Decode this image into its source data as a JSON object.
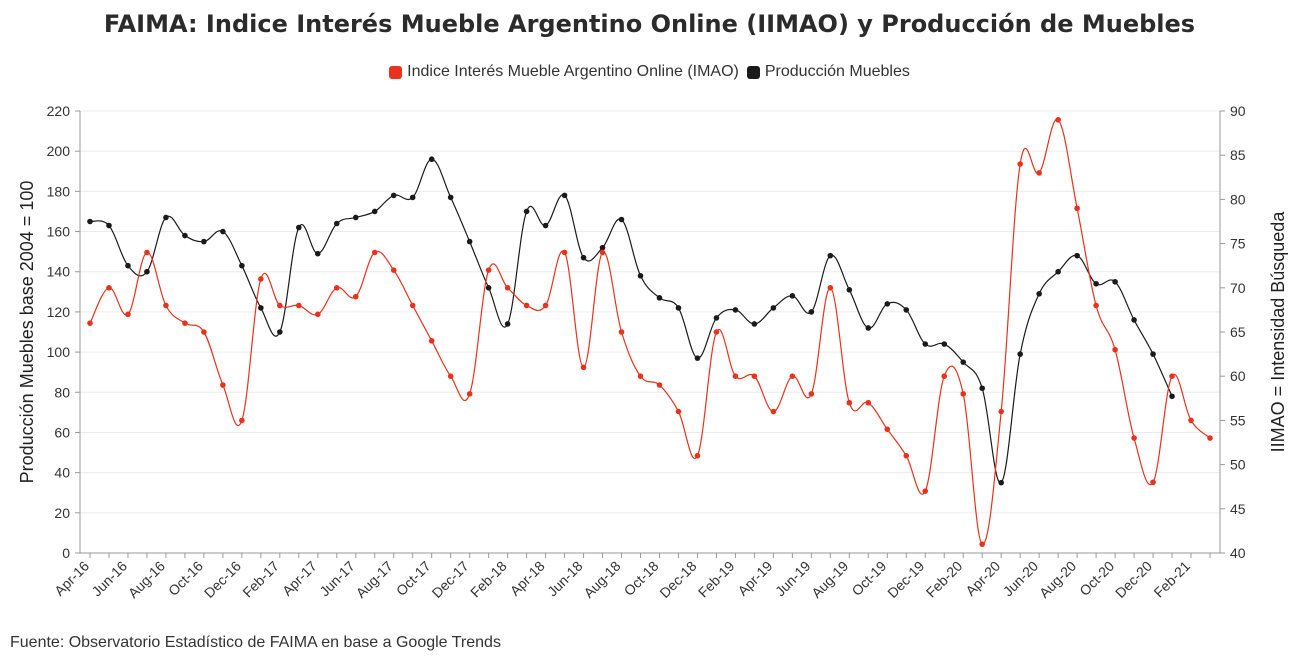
{
  "chart_data": {
    "type": "line",
    "title": "FAIMA: Indice Interés Mueble Argentino Online (IIMAO) y Producción de Muebles",
    "source": "Fuente: Observatorio Estadístico de FAIMA en base a Google Trends",
    "y_left": {
      "label": "Producción Muebles base 2004 = 100",
      "lim": [
        0,
        220
      ],
      "ticks": [
        "0",
        "20",
        "40",
        "60",
        "80",
        "100",
        "120",
        "140",
        "160",
        "180",
        "200",
        "220"
      ]
    },
    "y_right": {
      "label": "IIMAO = Intensidad Búsqueda",
      "lim": [
        40,
        90
      ],
      "ticks": [
        "40",
        "45",
        "50",
        "55",
        "60",
        "65",
        "70",
        "75",
        "80",
        "85",
        "90"
      ]
    },
    "x": [
      "Apr-16",
      "May-16",
      "Jun-16",
      "Jul-16",
      "Aug-16",
      "Sep-16",
      "Oct-16",
      "Nov-16",
      "Dec-16",
      "Jan-17",
      "Feb-17",
      "Mar-17",
      "Apr-17",
      "May-17",
      "Jun-17",
      "Jul-17",
      "Aug-17",
      "Sep-17",
      "Oct-17",
      "Nov-17",
      "Dec-17",
      "Jan-18",
      "Feb-18",
      "Mar-18",
      "Apr-18",
      "May-18",
      "Jun-18",
      "Jul-18",
      "Aug-18",
      "Sep-18",
      "Oct-18",
      "Nov-18",
      "Dec-18",
      "Jan-19",
      "Feb-19",
      "Mar-19",
      "Apr-19",
      "May-19",
      "Jun-19",
      "Jul-19",
      "Aug-19",
      "Sep-19",
      "Oct-19",
      "Nov-19",
      "Dec-19",
      "Jan-20",
      "Feb-20",
      "Mar-20",
      "Apr-20",
      "May-20",
      "Jun-20",
      "Jul-20",
      "Aug-20",
      "Sep-20",
      "Oct-20",
      "Nov-20",
      "Dec-20",
      "Jan-21",
      "Feb-21",
      "Mar-21"
    ],
    "x_tick_labels": [
      "Apr-16",
      "Jun-16",
      "Aug-16",
      "Oct-16",
      "Dec-16",
      "Feb-17",
      "Apr-17",
      "Jun-17",
      "Aug-17",
      "Oct-17",
      "Dec-17",
      "Feb-18",
      "Apr-18",
      "Jun-18",
      "Aug-18",
      "Oct-18",
      "Dec-18",
      "Feb-19",
      "Apr-19",
      "Jun-19",
      "Aug-19",
      "Oct-19",
      "Dec-19",
      "Feb-20",
      "Apr-20",
      "Jun-20",
      "Aug-20",
      "Oct-20",
      "Dec-20",
      "Feb-21"
    ],
    "legend_position": "top-center",
    "grid": true,
    "series": [
      {
        "name": "Indice Interés Mueble Argentino Online (IMAO)",
        "axis": "right",
        "color": "#e8321d",
        "values": [
          66,
          70,
          67,
          74,
          68,
          66,
          65,
          59,
          55,
          71,
          68,
          68,
          67,
          70,
          69,
          74,
          72,
          68,
          64,
          60,
          58,
          72,
          70,
          68,
          68,
          74,
          61,
          74,
          65,
          60,
          59,
          56,
          51,
          65,
          60,
          60,
          56,
          60,
          58,
          70,
          57,
          57,
          54,
          51,
          47,
          60,
          58,
          41,
          56,
          84,
          83,
          89,
          79,
          68,
          63,
          53,
          48,
          60,
          55,
          53
        ]
      },
      {
        "name": "Producción Muebles",
        "axis": "left",
        "color": "#1a1a1a",
        "values": [
          165,
          163,
          143,
          140,
          167,
          158,
          155,
          160,
          143,
          122,
          110,
          162,
          149,
          164,
          167,
          170,
          178,
          177,
          196,
          177,
          155,
          132,
          114,
          170,
          163,
          178,
          147,
          152,
          166,
          138,
          127,
          122,
          97,
          117,
          121,
          114,
          122,
          128,
          120,
          148,
          131,
          112,
          124,
          121,
          104,
          104,
          95,
          82,
          35,
          99,
          129,
          140,
          148,
          134,
          135,
          116,
          99,
          78,
          null,
          null
        ]
      }
    ]
  }
}
